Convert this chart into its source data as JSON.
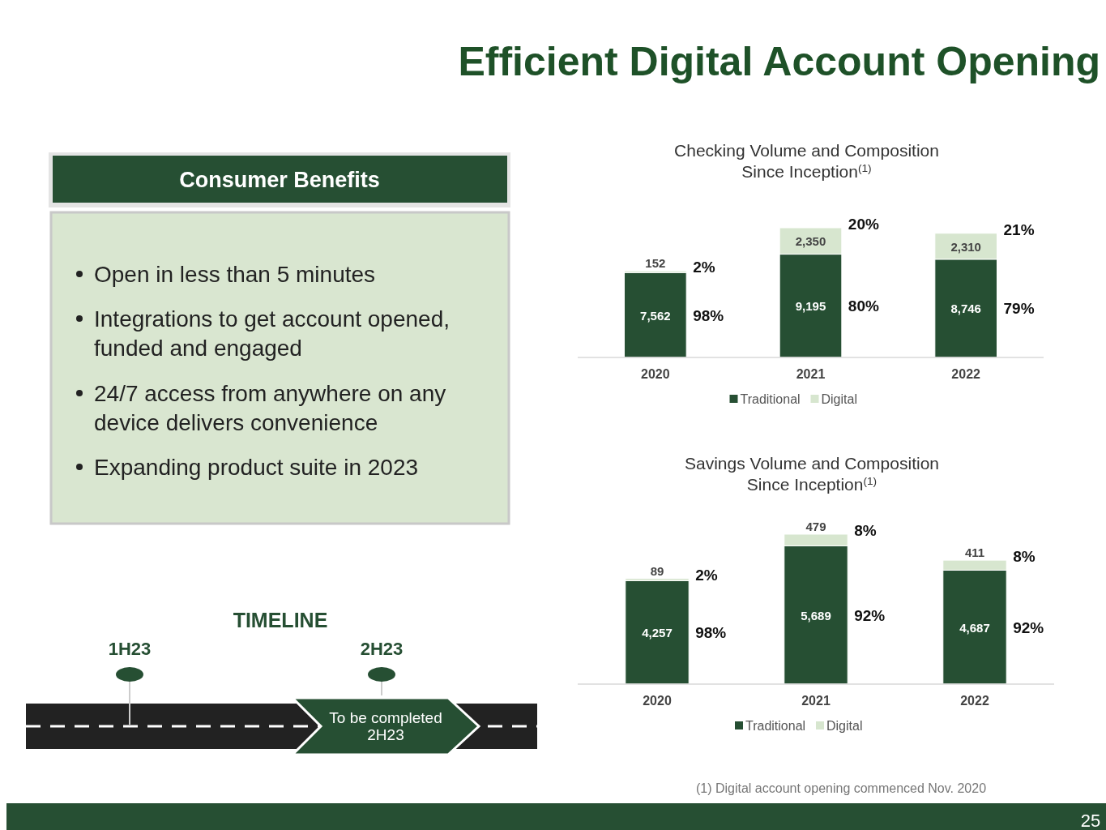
{
  "chart_data": [
    {
      "type": "other",
      "title": "Efficient Digital Account Opening",
      "subtitle": "Consumer Benefits",
      "annotations": [
        "Open in less than 5 minutes",
        "Integrations to get account opened, funded and engaged",
        "24/7 access from anywhere on any device delivers convenience",
        "Expanding product suite in 2023",
        "TIMELINE",
        "1H23",
        "2H23",
        "To be completed 2H23",
        "(1) Digital account opening commenced Nov. 2020",
        "25"
      ]
    },
    {
      "type": "bar",
      "title": "Checking Volume and Composition\nSince Inception$^{(1)}$",
      "categories": [
        "2020",
        "2021",
        "2022"
      ],
      "stacked": true,
      "legend": "bottom",
      "series": [
        {
          "name": "Traditional",
          "color": "#264f33",
          "values": [
            7562,
            9195,
            8746
          ],
          "value_labels": [
            "7,562",
            "9,195",
            "8,746"
          ]
        },
        {
          "name": "Digital",
          "color": "#d7e6cf",
          "values": [
            152,
            2350,
            2310
          ],
          "value_labels": [
            "152",
            "2,350",
            "2,310"
          ]
        }
      ],
      "annotations": [
        "98%",
        "2%",
        "80%",
        "20%",
        "79%",
        "21%"
      ]
    },
    {
      "type": "bar",
      "title": "Savings Volume and Composition\nSince Inception$^{(1)}$",
      "categories": [
        "2020",
        "2021",
        "2022"
      ],
      "stacked": true,
      "legend": "bottom",
      "series": [
        {
          "name": "Traditional",
          "color": "#264f33",
          "values": [
            4257,
            5689,
            4687
          ],
          "value_labels": [
            "4,257",
            "5,689",
            "4,687"
          ]
        },
        {
          "name": "Digital",
          "color": "#d7e6cf",
          "values": [
            89,
            479,
            411
          ],
          "value_labels": [
            "89",
            "479",
            "411"
          ]
        }
      ],
      "annotations": [
        "98%",
        "2%",
        "92%",
        "8%",
        "92%",
        "8%"
      ]
    }
  ]
}
